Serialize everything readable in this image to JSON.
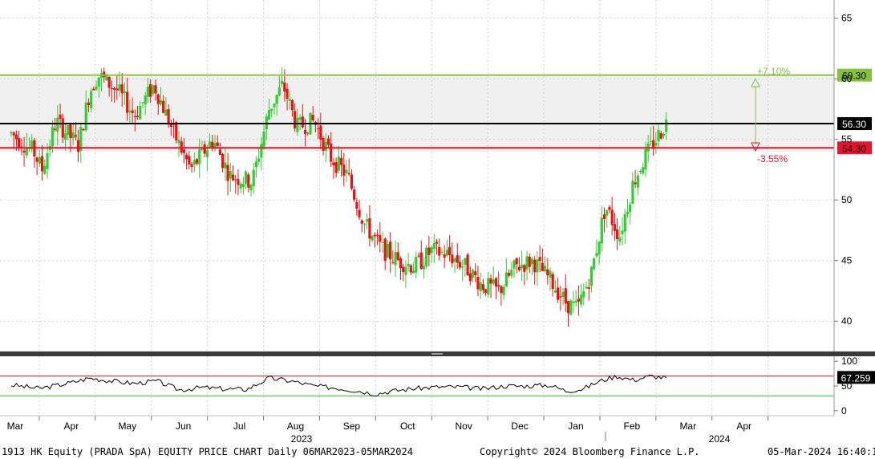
{
  "footer": {
    "left": "1913 HK Equity (PRADA SpA) EQUITY PRICE CHART  Daily 06MAR2023-05MAR2024",
    "center": "Copyright© 2024 Bloomberg Finance L.P.",
    "right": "05-Mar-2024 16:40:15"
  },
  "chart_data": [
    {
      "type": "candlestick",
      "title": "",
      "ylim": [
        37.5,
        66.5
      ],
      "y_ticks": [
        40,
        45,
        50,
        55,
        60,
        65
      ],
      "x_ticks": [
        "Mar",
        "Apr",
        "May",
        "Jun",
        "Jul",
        "Aug",
        "Sep",
        "Oct",
        "Nov",
        "Dec",
        "Jan",
        "Feb",
        "Mar",
        "Apr"
      ],
      "year_labels": [
        "2023",
        "2024"
      ],
      "horizontal_lines": [
        {
          "value": 60.3,
          "label": "60.30",
          "color": "#86c13a"
        },
        {
          "value": 56.3,
          "label": "56.30",
          "color": "#000000"
        },
        {
          "value": 54.3,
          "label": "54.30",
          "color": "#e8132c"
        }
      ],
      "annotations": [
        {
          "text": "+7.10%",
          "color": "#86c13a"
        },
        {
          "text": "-3.55%",
          "color": "#e8132c"
        }
      ],
      "colors": {
        "up": "#33cc33",
        "down": "#ee1111",
        "grid": "#cccccc"
      },
      "price_path": [
        {
          "month": 0.0,
          "price": 55.5
        },
        {
          "month": 0.4,
          "price": 54.0
        },
        {
          "month": 0.55,
          "price": 52.5
        },
        {
          "month": 0.8,
          "price": 56.5
        },
        {
          "month": 1.2,
          "price": 54.5
        },
        {
          "month": 1.4,
          "price": 59.0
        },
        {
          "month": 1.55,
          "price": 60.3
        },
        {
          "month": 1.9,
          "price": 59.0
        },
        {
          "month": 2.2,
          "price": 57.0
        },
        {
          "month": 2.55,
          "price": 59.5
        },
        {
          "month": 2.9,
          "price": 55.5
        },
        {
          "month": 3.2,
          "price": 52.5
        },
        {
          "month": 3.6,
          "price": 55.0
        },
        {
          "month": 3.9,
          "price": 52.0
        },
        {
          "month": 4.3,
          "price": 51.5
        },
        {
          "month": 4.6,
          "price": 57.5
        },
        {
          "month": 4.85,
          "price": 59.5
        },
        {
          "month": 5.1,
          "price": 56.0
        },
        {
          "month": 5.4,
          "price": 56.5
        },
        {
          "month": 5.7,
          "price": 53.5
        },
        {
          "month": 6.0,
          "price": 52.0
        },
        {
          "month": 6.3,
          "price": 48.0
        },
        {
          "month": 6.6,
          "price": 46.0
        },
        {
          "month": 6.9,
          "price": 45.0
        },
        {
          "month": 7.2,
          "price": 44.5
        },
        {
          "month": 7.5,
          "price": 45.8
        },
        {
          "month": 7.8,
          "price": 45.5
        },
        {
          "month": 8.1,
          "price": 44.5
        },
        {
          "month": 8.4,
          "price": 43.0
        },
        {
          "month": 8.7,
          "price": 42.5
        },
        {
          "month": 9.0,
          "price": 44.5
        },
        {
          "month": 9.3,
          "price": 45.0
        },
        {
          "month": 9.6,
          "price": 43.5
        },
        {
          "month": 9.9,
          "price": 41.5
        },
        {
          "month": 10.1,
          "price": 41.0
        },
        {
          "month": 10.35,
          "price": 44.0
        },
        {
          "month": 10.6,
          "price": 49.5
        },
        {
          "month": 10.85,
          "price": 47.0
        },
        {
          "month": 11.1,
          "price": 51.5
        },
        {
          "month": 11.3,
          "price": 53.5
        },
        {
          "month": 11.5,
          "price": 55.0
        },
        {
          "month": 11.7,
          "price": 56.5
        }
      ]
    },
    {
      "type": "line",
      "title": "",
      "ylim": [
        -10,
        110
      ],
      "y_ticks": [
        0,
        50,
        100
      ],
      "last_value_label": "67.259",
      "reference_lines": [
        {
          "value": 70,
          "color": "#e8132c"
        },
        {
          "value": 30,
          "color": "#33cc33"
        }
      ],
      "path": [
        {
          "month": 0.0,
          "value": 52
        },
        {
          "month": 0.5,
          "value": 45
        },
        {
          "month": 1.0,
          "value": 55
        },
        {
          "month": 1.4,
          "value": 66
        },
        {
          "month": 1.8,
          "value": 60
        },
        {
          "month": 2.2,
          "value": 55
        },
        {
          "month": 2.6,
          "value": 60
        },
        {
          "month": 3.0,
          "value": 42
        },
        {
          "month": 3.4,
          "value": 47
        },
        {
          "month": 3.8,
          "value": 44
        },
        {
          "month": 4.2,
          "value": 43
        },
        {
          "month": 4.6,
          "value": 66
        },
        {
          "month": 5.0,
          "value": 60
        },
        {
          "month": 5.4,
          "value": 50
        },
        {
          "month": 5.8,
          "value": 46
        },
        {
          "month": 6.2,
          "value": 40
        },
        {
          "month": 6.5,
          "value": 34
        },
        {
          "month": 6.8,
          "value": 40
        },
        {
          "month": 7.2,
          "value": 45
        },
        {
          "month": 7.6,
          "value": 48
        },
        {
          "month": 8.0,
          "value": 48
        },
        {
          "month": 8.4,
          "value": 44
        },
        {
          "month": 8.8,
          "value": 50
        },
        {
          "month": 9.2,
          "value": 50
        },
        {
          "month": 9.6,
          "value": 52
        },
        {
          "month": 9.9,
          "value": 40
        },
        {
          "month": 10.2,
          "value": 44
        },
        {
          "month": 10.5,
          "value": 60
        },
        {
          "month": 10.8,
          "value": 70
        },
        {
          "month": 11.1,
          "value": 62
        },
        {
          "month": 11.4,
          "value": 70
        },
        {
          "month": 11.7,
          "value": 66
        }
      ]
    }
  ]
}
